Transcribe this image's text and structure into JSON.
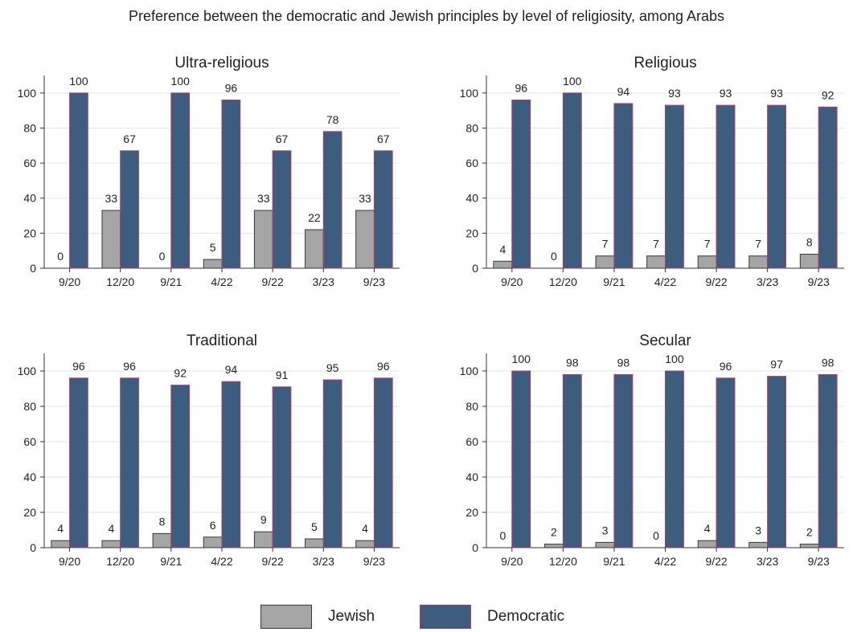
{
  "title": "Preference between the democratic and Jewish principles by level of religiosity, among Arabs",
  "legend": {
    "jewish_label": "Jewish",
    "democratic_label": "Democratic"
  },
  "colors": {
    "jewish_fill": "#a5a5a5",
    "jewish_stroke": "#3a3a3a",
    "democratic_fill": "#3d5d7e",
    "democratic_stroke": "#b43a6b",
    "grid": "#e6e6e6",
    "axis": "#333333",
    "text": "#222222"
  },
  "chart_data": [
    {
      "type": "bar",
      "title": "Ultra-religious",
      "categories": [
        "9/20",
        "12/20",
        "9/21",
        "4/22",
        "9/22",
        "3/23",
        "9/23"
      ],
      "series": [
        {
          "name": "Jewish",
          "values": [
            0,
            33,
            0,
            5,
            33,
            22,
            33
          ]
        },
        {
          "name": "Democratic",
          "values": [
            100,
            67,
            100,
            96,
            67,
            78,
            67
          ]
        }
      ],
      "yticks": [
        0,
        20,
        40,
        60,
        80,
        100
      ],
      "ylim": [
        0,
        110
      ],
      "grid": true,
      "legend_position": "bottom"
    },
    {
      "type": "bar",
      "title": "Religious",
      "categories": [
        "9/20",
        "12/20",
        "9/21",
        "4/22",
        "9/22",
        "3/23",
        "9/23"
      ],
      "series": [
        {
          "name": "Jewish",
          "values": [
            4,
            0,
            7,
            7,
            7,
            7,
            8
          ]
        },
        {
          "name": "Democratic",
          "values": [
            96,
            100,
            94,
            93,
            93,
            93,
            92
          ]
        }
      ],
      "yticks": [
        0,
        20,
        40,
        60,
        80,
        100
      ],
      "ylim": [
        0,
        110
      ],
      "grid": true,
      "legend_position": "bottom"
    },
    {
      "type": "bar",
      "title": "Traditional",
      "categories": [
        "9/20",
        "12/20",
        "9/21",
        "4/22",
        "9/22",
        "3/23",
        "9/23"
      ],
      "series": [
        {
          "name": "Jewish",
          "values": [
            4,
            4,
            8,
            6,
            9,
            5,
            4
          ]
        },
        {
          "name": "Democratic",
          "values": [
            96,
            96,
            92,
            94,
            91,
            95,
            96
          ]
        }
      ],
      "yticks": [
        0,
        20,
        40,
        60,
        80,
        100
      ],
      "ylim": [
        0,
        110
      ],
      "grid": true,
      "legend_position": "bottom"
    },
    {
      "type": "bar",
      "title": "Secular",
      "categories": [
        "9/20",
        "12/20",
        "9/21",
        "4/22",
        "9/22",
        "3/23",
        "9/23"
      ],
      "series": [
        {
          "name": "Jewish",
          "values": [
            0,
            2,
            3,
            0,
            4,
            3,
            2
          ]
        },
        {
          "name": "Democratic",
          "values": [
            100,
            98,
            98,
            100,
            96,
            97,
            98
          ]
        }
      ],
      "yticks": [
        0,
        20,
        40,
        60,
        80,
        100
      ],
      "ylim": [
        0,
        110
      ],
      "grid": true,
      "legend_position": "bottom"
    }
  ]
}
